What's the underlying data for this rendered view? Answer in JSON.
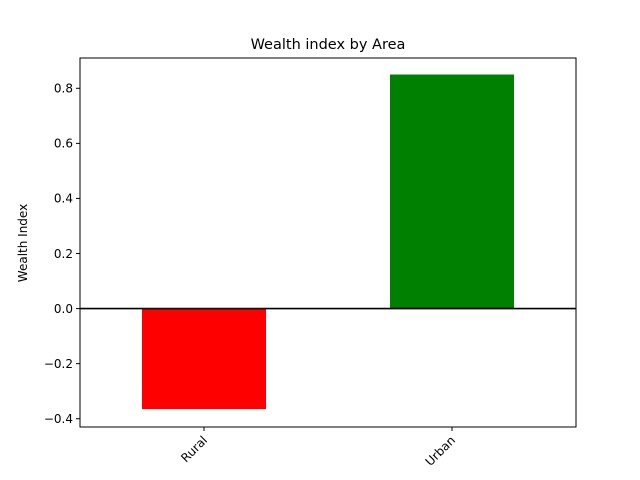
{
  "chart_data": {
    "type": "bar",
    "title": "Wealth index by Area",
    "xlabel": "",
    "ylabel": "Wealth Index",
    "categories": [
      "Rural",
      "Urban"
    ],
    "values": [
      -0.365,
      0.85
    ],
    "bar_colors": [
      "#ff0000",
      "#008000"
    ],
    "ylim": [
      -0.43,
      0.91
    ],
    "yticks": [
      -0.4,
      -0.2,
      0.0,
      0.2,
      0.4,
      0.6,
      0.8
    ],
    "ytick_labels": [
      "−0.4",
      "−0.2",
      "0.0",
      "0.2",
      "0.4",
      "0.6",
      "0.8"
    ],
    "zero_line": true,
    "zero_line_color": "#000000",
    "xtick_rotation_deg": 45,
    "grid": false,
    "legend": "none"
  }
}
